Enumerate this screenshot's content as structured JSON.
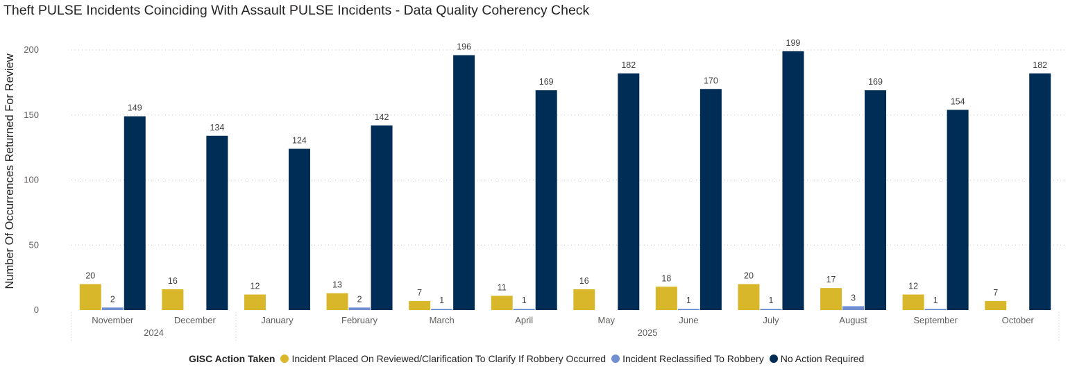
{
  "chart_data": {
    "type": "bar",
    "title": "Theft PULSE Incidents Coinciding With Assault PULSE Incidents - Data Quality Coherency Check",
    "xlabel": "",
    "ylabel": "Number Of Occurrences Returned For Review",
    "ylim": [
      0,
      200
    ],
    "yticks": [
      0,
      50,
      100,
      150,
      200
    ],
    "categories": [
      "November",
      "December",
      "January",
      "February",
      "March",
      "April",
      "May",
      "June",
      "July",
      "August",
      "September",
      "October"
    ],
    "year_groups": [
      {
        "label": "2024",
        "span": 2
      },
      {
        "label": "2025",
        "span": 10
      }
    ],
    "grid": true,
    "legend_title": "GISC Action Taken",
    "legend_position": "bottom",
    "series": [
      {
        "name": "Incident Placed On Reviewed/Clarification To Clarify If Robbery Occurred",
        "color": "#D9B72B",
        "values": [
          20,
          16,
          12,
          13,
          7,
          11,
          16,
          18,
          20,
          17,
          12,
          7
        ]
      },
      {
        "name": "Incident Reclassified To Robbery",
        "color": "#6F8FD0",
        "values": [
          2,
          null,
          null,
          2,
          1,
          1,
          null,
          1,
          1,
          3,
          1,
          null
        ]
      },
      {
        "name": "No Action Required",
        "color": "#002D55",
        "values": [
          149,
          134,
          124,
          142,
          196,
          169,
          182,
          170,
          199,
          169,
          154,
          182
        ]
      }
    ]
  }
}
